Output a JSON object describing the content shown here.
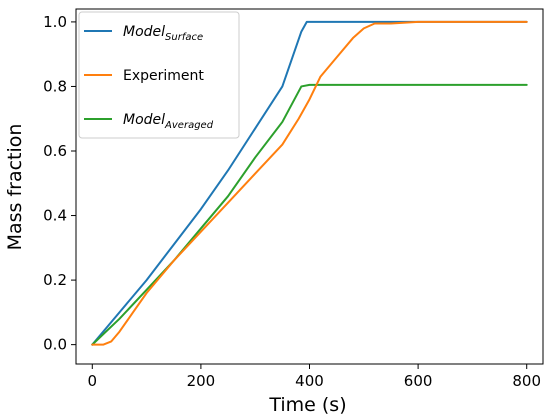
{
  "chart_data": {
    "type": "line",
    "xlabel": "Time (s)",
    "ylabel": "Mass fraction",
    "xlim": [
      -30,
      830
    ],
    "ylim": [
      -0.06,
      1.04
    ],
    "x_ticks": [
      0,
      200,
      400,
      600,
      800
    ],
    "y_ticks": [
      0.0,
      0.2,
      0.4,
      0.6,
      0.8,
      1.0
    ],
    "x_tick_labels": [
      "0",
      "200",
      "400",
      "600",
      "800"
    ],
    "y_tick_labels": [
      "0.0",
      "0.2",
      "0.4",
      "0.6",
      "0.8",
      "1.0"
    ],
    "grid": false,
    "legend_position": "top-left",
    "series": [
      {
        "name": "Model",
        "name_sub": "Surface",
        "color": "#1f77b4",
        "points": [
          [
            0,
            0
          ],
          [
            50,
            0.1
          ],
          [
            100,
            0.2
          ],
          [
            150,
            0.31
          ],
          [
            200,
            0.42
          ],
          [
            250,
            0.54
          ],
          [
            300,
            0.67
          ],
          [
            350,
            0.8
          ],
          [
            385,
            0.97
          ],
          [
            395,
            1.0
          ],
          [
            500,
            1.0
          ],
          [
            600,
            1.0
          ],
          [
            700,
            1.0
          ],
          [
            800,
            1.0
          ]
        ]
      },
      {
        "name": "Experiment",
        "color": "#ff7f0e",
        "points": [
          [
            0,
            0
          ],
          [
            20,
            0.0
          ],
          [
            35,
            0.01
          ],
          [
            50,
            0.04
          ],
          [
            75,
            0.1
          ],
          [
            100,
            0.16
          ],
          [
            150,
            0.26
          ],
          [
            200,
            0.35
          ],
          [
            250,
            0.44
          ],
          [
            300,
            0.53
          ],
          [
            350,
            0.62
          ],
          [
            380,
            0.7
          ],
          [
            400,
            0.76
          ],
          [
            420,
            0.83
          ],
          [
            450,
            0.89
          ],
          [
            480,
            0.95
          ],
          [
            500,
            0.98
          ],
          [
            520,
            0.995
          ],
          [
            550,
            0.995
          ],
          [
            600,
            1.0
          ],
          [
            700,
            1.0
          ],
          [
            800,
            1.0
          ]
        ]
      },
      {
        "name": "Model",
        "name_sub": "Averaged",
        "color": "#2ca02c",
        "points": [
          [
            0,
            0
          ],
          [
            50,
            0.08
          ],
          [
            100,
            0.17
          ],
          [
            150,
            0.26
          ],
          [
            200,
            0.36
          ],
          [
            250,
            0.46
          ],
          [
            300,
            0.58
          ],
          [
            350,
            0.69
          ],
          [
            385,
            0.8
          ],
          [
            400,
            0.805
          ],
          [
            500,
            0.805
          ],
          [
            600,
            0.805
          ],
          [
            700,
            0.805
          ],
          [
            800,
            0.805
          ]
        ]
      }
    ]
  }
}
